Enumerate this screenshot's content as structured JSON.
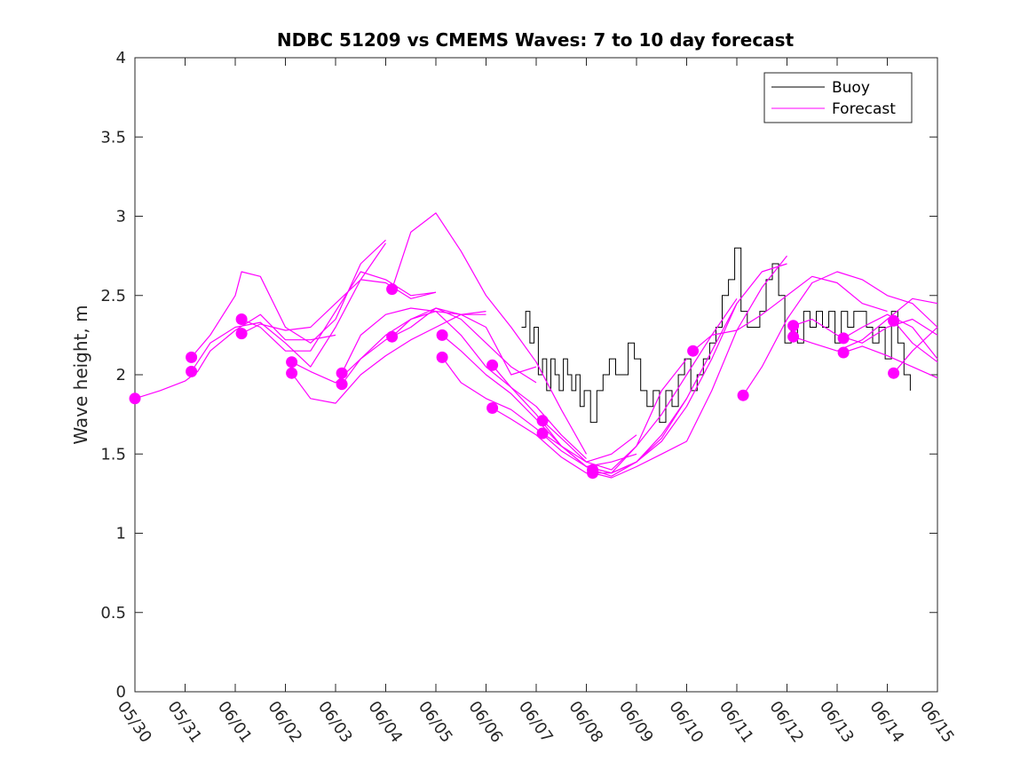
{
  "chart_data": {
    "type": "line",
    "title": "NDBC 51209 vs CMEMS Waves: 7 to 10 day forecast",
    "xlabel": "",
    "ylabel": "Wave height, m",
    "xlim": [
      "05/30",
      "06/15"
    ],
    "ylim": [
      0,
      4
    ],
    "x_tick_labels": [
      "05/30",
      "05/31",
      "06/01",
      "06/02",
      "06/03",
      "06/04",
      "06/05",
      "06/06",
      "06/07",
      "06/08",
      "06/09",
      "06/10",
      "06/11",
      "06/12",
      "06/13",
      "06/14",
      "06/15"
    ],
    "y_ticks": [
      0,
      0.5,
      1,
      1.5,
      2,
      2.5,
      3,
      3.5,
      4
    ],
    "y_tick_labels": [
      "0",
      "0.5",
      "1",
      "1.5",
      "2",
      "2.5",
      "3",
      "3.5",
      "4"
    ],
    "grid": false,
    "legend": {
      "position": "top-right",
      "entries": [
        "Buoy",
        "Forecast"
      ]
    },
    "colors": {
      "buoy": "#000000",
      "forecast": "#ff00ff"
    },
    "series": [
      {
        "name": "Buoy",
        "x": [
          "06/06 17:00",
          "06/06 19:00",
          "06/06 21:00",
          "06/06 23:00",
          "06/07 01:00",
          "06/07 03:00",
          "06/07 05:00",
          "06/07 07:00",
          "06/07 09:00",
          "06/07 11:00",
          "06/07 13:00",
          "06/07 15:00",
          "06/07 17:00",
          "06/07 19:00",
          "06/07 21:00",
          "06/07 23:00",
          "06/08 02:00",
          "06/08 05:00",
          "06/08 08:00",
          "06/08 11:00",
          "06/08 14:00",
          "06/08 17:00",
          "06/08 20:00",
          "06/08 23:00",
          "06/09 02:00",
          "06/09 05:00",
          "06/09 08:00",
          "06/09 11:00",
          "06/09 14:00",
          "06/09 17:00",
          "06/09 20:00",
          "06/09 23:00",
          "06/10 02:00",
          "06/10 05:00",
          "06/10 08:00",
          "06/10 11:00",
          "06/10 14:00",
          "06/10 17:00",
          "06/10 20:00",
          "06/10 23:00",
          "06/11 02:00",
          "06/11 05:00",
          "06/11 08:00",
          "06/11 11:00",
          "06/11 14:00",
          "06/11 17:00",
          "06/11 20:00",
          "06/11 23:00",
          "06/12 02:00",
          "06/12 05:00",
          "06/12 08:00",
          "06/12 11:00",
          "06/12 14:00",
          "06/12 17:00",
          "06/12 20:00",
          "06/12 23:00",
          "06/13 02:00",
          "06/13 05:00",
          "06/13 08:00",
          "06/13 11:00",
          "06/13 14:00",
          "06/13 17:00",
          "06/13 20:00",
          "06/13 23:00",
          "06/14 02:00",
          "06/14 05:00",
          "06/14 08:00",
          "06/14 11:00"
        ],
        "values": [
          2.3,
          2.4,
          2.2,
          2.3,
          2.0,
          2.1,
          1.9,
          2.1,
          2.0,
          1.9,
          2.1,
          2.0,
          1.9,
          2.0,
          1.8,
          1.9,
          1.7,
          1.9,
          2.0,
          2.1,
          2.0,
          2.0,
          2.2,
          2.1,
          1.9,
          1.8,
          1.9,
          1.7,
          1.9,
          1.8,
          2.0,
          2.1,
          1.9,
          2.0,
          2.1,
          2.2,
          2.3,
          2.5,
          2.6,
          2.8,
          2.4,
          2.3,
          2.3,
          2.4,
          2.6,
          2.7,
          2.5,
          2.2,
          2.3,
          2.2,
          2.4,
          2.3,
          2.4,
          2.3,
          2.4,
          2.2,
          2.4,
          2.3,
          2.4,
          2.4,
          2.3,
          2.2,
          2.3,
          2.1,
          2.4,
          2.2,
          2.0,
          1.9
        ]
      },
      {
        "name": "Forecast",
        "runs": [
          {
            "x": [
              "05/30 00:00",
              "05/30 12:00",
              "05/31 00:00",
              "05/31 06:00",
              "05/31 12:00",
              "06/01 00:00",
              "06/01 12:00",
              "06/02 00:00",
              "06/02 12:00",
              "06/03 00:00"
            ],
            "values": [
              1.85,
              1.9,
              1.96,
              2.02,
              2.15,
              2.28,
              2.38,
              2.22,
              2.22,
              2.25
            ]
          },
          {
            "x": [
              "05/31 03:00",
              "05/31 12:00",
              "06/01 00:00",
              "06/01 03:00",
              "06/01 12:00",
              "06/02 00:00",
              "06/02 12:00",
              "06/03 00:00",
              "06/03 12:00",
              "06/04 00:00"
            ],
            "values": [
              2.11,
              2.25,
              2.5,
              2.65,
              2.62,
              2.3,
              2.2,
              2.35,
              2.7,
              2.85
            ]
          },
          {
            "x": [
              "05/31 03:00",
              "05/31 12:00",
              "06/01 00:00",
              "06/01 12:00",
              "06/02 00:00",
              "06/02 12:00",
              "06/03 00:00",
              "06/03 12:00",
              "06/04 00:00"
            ],
            "values": [
              2.02,
              2.2,
              2.3,
              2.33,
              2.2,
              2.05,
              2.3,
              2.6,
              2.83
            ]
          },
          {
            "x": [
              "06/01 03:00",
              "06/01 12:00",
              "06/02 00:00",
              "06/02 12:00",
              "06/03 00:00",
              "06/03 12:00",
              "06/04 00:00",
              "06/04 12:00",
              "06/05 00:00"
            ],
            "values": [
              2.35,
              2.3,
              2.15,
              2.15,
              2.4,
              2.65,
              2.6,
              2.5,
              2.52
            ]
          },
          {
            "x": [
              "06/01 03:00",
              "06/01 12:00",
              "06/02 00:00",
              "06/02 12:00",
              "06/03 00:00",
              "06/03 12:00",
              "06/04 00:00",
              "06/04 12:00",
              "06/05 00:00"
            ],
            "values": [
              2.26,
              2.32,
              2.28,
              2.3,
              2.45,
              2.6,
              2.58,
              2.48,
              2.52
            ]
          },
          {
            "x": [
              "06/02 03:00",
              "06/02 12:00",
              "06/03 00:00",
              "06/03 12:00",
              "06/04 00:00",
              "06/04 12:00",
              "06/05 00:00",
              "06/05 12:00",
              "06/06 00:00"
            ],
            "values": [
              2.08,
              2.02,
              1.95,
              2.1,
              2.25,
              2.35,
              2.42,
              2.38,
              2.38
            ]
          },
          {
            "x": [
              "06/02 03:00",
              "06/02 12:00",
              "06/03 00:00",
              "06/03 12:00",
              "06/04 00:00",
              "06/04 12:00",
              "06/05 00:00",
              "06/05 12:00",
              "06/06 00:00"
            ],
            "values": [
              2.01,
              1.85,
              1.82,
              2.0,
              2.12,
              2.22,
              2.3,
              2.38,
              2.4
            ]
          },
          {
            "x": [
              "06/03 03:00",
              "06/03 12:00",
              "06/04 00:00",
              "06/04 12:00",
              "06/05 00:00",
              "06/05 12:00",
              "06/06 00:00",
              "06/06 12:00",
              "06/07 00:00"
            ],
            "values": [
              2.01,
              2.25,
              2.38,
              2.42,
              2.4,
              2.38,
              2.3,
              2.0,
              2.05
            ]
          },
          {
            "x": [
              "06/03 03:00",
              "06/03 12:00",
              "06/04 00:00",
              "06/04 12:00",
              "06/05 00:00",
              "06/05 12:00",
              "06/06 00:00",
              "06/06 12:00",
              "06/07 00:00"
            ],
            "values": [
              1.94,
              2.1,
              2.22,
              2.3,
              2.42,
              2.35,
              2.2,
              2.05,
              1.95
            ]
          },
          {
            "x": [
              "06/04 03:00",
              "06/04 12:00",
              "06/05 00:00",
              "06/05 12:00",
              "06/06 00:00",
              "06/06 12:00",
              "06/07 00:00",
              "06/07 12:00",
              "06/08 00:00"
            ],
            "values": [
              2.54,
              2.9,
              3.02,
              2.78,
              2.5,
              2.3,
              2.08,
              1.78,
              1.5
            ]
          },
          {
            "x": [
              "06/04 03:00",
              "06/04 12:00",
              "06/05 00:00",
              "06/05 12:00",
              "06/06 00:00",
              "06/06 12:00",
              "06/07 00:00",
              "06/07 12:00",
              "06/08 00:00"
            ],
            "values": [
              2.24,
              2.35,
              2.4,
              2.25,
              2.05,
              1.92,
              1.8,
              1.62,
              1.47
            ]
          },
          {
            "x": [
              "06/05 03:00",
              "06/05 12:00",
              "06/06 00:00",
              "06/06 12:00",
              "06/07 00:00",
              "06/07 12:00",
              "06/08 00:00",
              "06/08 12:00",
              "06/09 00:00"
            ],
            "values": [
              2.25,
              2.15,
              2.0,
              1.88,
              1.72,
              1.55,
              1.45,
              1.5,
              1.62
            ]
          },
          {
            "x": [
              "06/05 03:00",
              "06/05 12:00",
              "06/06 00:00",
              "06/06 12:00",
              "06/07 00:00",
              "06/07 12:00",
              "06/08 00:00",
              "06/08 12:00",
              "06/09 00:00"
            ],
            "values": [
              2.11,
              1.95,
              1.85,
              1.78,
              1.66,
              1.52,
              1.42,
              1.45,
              1.5
            ]
          },
          {
            "x": [
              "06/06 03:00",
              "06/06 12:00",
              "06/07 00:00",
              "06/07 12:00",
              "06/08 00:00",
              "06/08 12:00",
              "06/09 00:00",
              "06/09 12:00",
              "06/10 00:00"
            ],
            "values": [
              2.06,
              1.92,
              1.75,
              1.55,
              1.42,
              1.38,
              1.45,
              1.62,
              1.85
            ]
          },
          {
            "x": [
              "06/06 03:00",
              "06/06 12:00",
              "06/07 00:00",
              "06/07 12:00",
              "06/08 00:00",
              "06/08 12:00",
              "06/09 00:00",
              "06/09 12:00",
              "06/10 00:00"
            ],
            "values": [
              1.79,
              1.72,
              1.62,
              1.48,
              1.38,
              1.38,
              1.55,
              1.9,
              2.1
            ]
          },
          {
            "x": [
              "06/07 03:00",
              "06/07 12:00",
              "06/08 00:00",
              "06/08 12:00",
              "06/09 00:00",
              "06/09 12:00",
              "06/10 00:00",
              "06/10 12:00",
              "06/11 00:00"
            ],
            "values": [
              1.71,
              1.6,
              1.45,
              1.4,
              1.55,
              1.75,
              2.0,
              2.25,
              2.48
            ]
          },
          {
            "x": [
              "06/07 03:00",
              "06/07 12:00",
              "06/08 00:00",
              "06/08 12:00",
              "06/09 00:00",
              "06/09 12:00",
              "06/10 00:00",
              "06/10 12:00",
              "06/11 00:00"
            ],
            "values": [
              1.63,
              1.55,
              1.42,
              1.38,
              1.45,
              1.6,
              1.85,
              2.15,
              2.45
            ]
          },
          {
            "x": [
              "06/08 03:00",
              "06/08 12:00",
              "06/09 00:00",
              "06/09 12:00",
              "06/10 00:00",
              "06/10 12:00",
              "06/11 00:00",
              "06/11 12:00",
              "06/12 00:00"
            ],
            "values": [
              1.4,
              1.36,
              1.45,
              1.58,
              1.8,
              2.1,
              2.45,
              2.65,
              2.7
            ]
          },
          {
            "x": [
              "06/08 03:00",
              "06/08 12:00",
              "06/09 00:00",
              "06/09 12:00",
              "06/10 00:00",
              "06/10 12:00",
              "06/11 00:00",
              "06/11 12:00",
              "06/12 00:00"
            ],
            "values": [
              1.38,
              1.35,
              1.42,
              1.5,
              1.58,
              1.9,
              2.28,
              2.55,
              2.75
            ]
          },
          {
            "x": [
              "06/10 03:00",
              "06/10 12:00",
              "06/11 00:00",
              "06/11 12:00",
              "06/12 00:00",
              "06/12 12:00",
              "06/13 00:00",
              "06/13 12:00",
              "06/14 00:00"
            ],
            "values": [
              2.15,
              2.25,
              2.28,
              2.38,
              2.5,
              2.62,
              2.58,
              2.45,
              2.4
            ]
          },
          {
            "x": [
              "06/11 03:00",
              "06/11 12:00",
              "06/12 00:00",
              "06/12 12:00",
              "06/13 00:00",
              "06/13 12:00",
              "06/14 00:00",
              "06/14 12:00",
              "06/15 00:00"
            ],
            "values": [
              1.87,
              2.05,
              2.35,
              2.58,
              2.65,
              2.6,
              2.5,
              2.45,
              2.3
            ]
          },
          {
            "x": [
              "06/12 03:00",
              "06/12 12:00",
              "06/13 00:00",
              "06/13 12:00",
              "06/14 00:00",
              "06/14 12:00",
              "06/15 00:00"
            ],
            "values": [
              2.31,
              2.35,
              2.25,
              2.2,
              2.3,
              2.35,
              2.25
            ]
          },
          {
            "x": [
              "06/12 03:00",
              "06/12 12:00",
              "06/13 00:00",
              "06/13 12:00",
              "06/14 00:00",
              "06/14 12:00",
              "06/15 00:00"
            ],
            "values": [
              2.24,
              2.2,
              2.15,
              2.22,
              2.35,
              2.48,
              2.45
            ]
          },
          {
            "x": [
              "06/13 03:00",
              "06/13 12:00",
              "06/14 00:00",
              "06/14 12:00",
              "06/15 00:00"
            ],
            "values": [
              2.23,
              2.3,
              2.38,
              2.3,
              2.1
            ]
          },
          {
            "x": [
              "06/13 03:00",
              "06/13 12:00",
              "06/14 00:00",
              "06/14 12:00",
              "06/15 00:00"
            ],
            "values": [
              2.14,
              2.18,
              2.12,
              2.05,
              1.98
            ]
          },
          {
            "x": [
              "06/14 03:00",
              "06/14 12:00",
              "06/15 00:00"
            ],
            "values": [
              2.34,
              2.2,
              2.08
            ]
          },
          {
            "x": [
              "06/14 03:00",
              "06/14 12:00",
              "06/15 00:00"
            ],
            "values": [
              2.01,
              2.15,
              2.3
            ]
          }
        ]
      }
    ]
  }
}
